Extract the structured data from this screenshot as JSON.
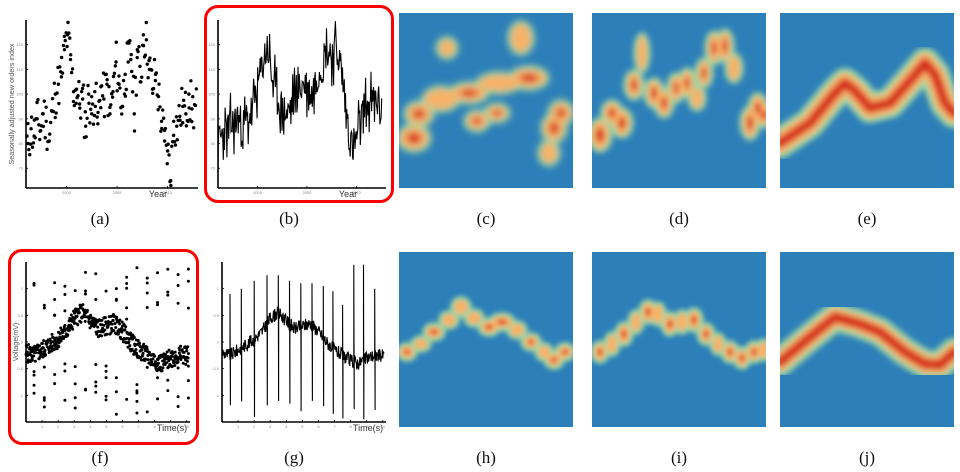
{
  "figure": {
    "captions": [
      "(a)",
      "(b)",
      "(c)",
      "(d)",
      "(e)",
      "(f)",
      "(g)",
      "(h)",
      "(i)",
      "(j)"
    ],
    "highlighted_panels": [
      "(b)",
      "(f)"
    ],
    "highlight_color": "#ff0000",
    "heatmap_colors": {
      "background": "#2c7fb8",
      "low": "#9fd8a4",
      "mid": "#f7b267",
      "high": "#d7301f"
    }
  },
  "panels": {
    "a": {
      "ylabel": "Seasonally adjusted new orders index",
      "xlabel": "Year",
      "yticks": [
        "70",
        "80",
        "90",
        "100",
        "110",
        "120"
      ],
      "xticks": [
        "2000",
        "2005",
        "2010"
      ]
    },
    "b": {
      "xlabel": "Year",
      "yticks": [
        "70",
        "80",
        "90",
        "100",
        "110",
        "120"
      ],
      "xticks": [
        "2000",
        "2005",
        "2010"
      ]
    },
    "f": {
      "ylabel": "Voltage(mV)",
      "xlabel": "Time(s)",
      "yticks": [
        "1",
        "0.5",
        "0",
        "-0.5",
        "-1"
      ],
      "xticks": [
        "1",
        "2",
        "3",
        "4",
        "5",
        "6",
        "7",
        "8",
        "9",
        "10"
      ]
    },
    "g": {
      "xlabel": "Time(s)",
      "yticks": [
        "1",
        "0.5",
        "0",
        "-0.5",
        "-1"
      ],
      "xticks": [
        "1",
        "2",
        "3",
        "4",
        "5",
        "6",
        "7",
        "8",
        "9",
        "10"
      ]
    }
  },
  "chart_data": [
    {
      "id": "a",
      "type": "scatter",
      "title": "",
      "xlabel": "Year",
      "ylabel": "Seasonally adjusted new orders index",
      "xlim": [
        1996,
        2013
      ],
      "ylim": [
        62,
        130
      ],
      "grid": false,
      "x": [
        1996.2,
        1996.5,
        1996.8,
        1997.1,
        1997.4,
        1997.7,
        1998.0,
        1998.3,
        1998.6,
        1998.9,
        1999.2,
        1999.5,
        1999.8,
        2000.1,
        2000.4,
        2000.7,
        2001.0,
        2001.3,
        2001.6,
        2001.9,
        2002.2,
        2002.5,
        2002.8,
        2003.1,
        2003.4,
        2003.7,
        2004.0,
        2004.3,
        2004.6,
        2004.9,
        2005.2,
        2005.5,
        2005.8,
        2006.1,
        2006.4,
        2006.7,
        2007.0,
        2007.3,
        2007.6,
        2007.9,
        2008.2,
        2008.5,
        2008.8,
        2009.1,
        2009.4,
        2009.7,
        2010.0,
        2010.3,
        2010.6,
        2010.9,
        2011.2,
        2011.5,
        2011.8,
        2012.1,
        2012.4
      ],
      "values": [
        80,
        86,
        83,
        90,
        85,
        92,
        89,
        81,
        93,
        100,
        104,
        107,
        118,
        124,
        114,
        101,
        102,
        96,
        98,
        87,
        100,
        92,
        101,
        88,
        103,
        98,
        104,
        92,
        101,
        113,
        104,
        95,
        108,
        113,
        116,
        92,
        118,
        105,
        124,
        122,
        110,
        102,
        108,
        99,
        89,
        81,
        77,
        65,
        89,
        87,
        91,
        95,
        92,
        100,
        94
      ]
    },
    {
      "id": "b",
      "type": "line",
      "title": "",
      "xlabel": "Year",
      "ylabel": "",
      "xlim": [
        1996,
        2013
      ],
      "ylim": [
        62,
        130
      ],
      "grid": false,
      "x": [
        1996.0,
        1996.5,
        1997.0,
        1997.5,
        1998.0,
        1998.5,
        1999.0,
        1999.5,
        2000.0,
        2000.5,
        2001.0,
        2001.5,
        2002.0,
        2002.5,
        2003.0,
        2003.5,
        2004.0,
        2004.5,
        2005.0,
        2005.5,
        2006.0,
        2006.5,
        2007.0,
        2007.5,
        2008.0,
        2008.5,
        2009.0,
        2009.5,
        2010.0,
        2010.5,
        2011.0,
        2011.5,
        2012.0,
        2012.5
      ],
      "values": [
        80,
        84,
        86,
        88,
        90,
        87,
        89,
        94,
        103,
        112,
        120,
        106,
        98,
        94,
        92,
        96,
        100,
        104,
        103,
        100,
        108,
        112,
        118,
        116,
        120,
        108,
        92,
        78,
        82,
        90,
        94,
        96,
        98,
        94
      ]
    },
    {
      "id": "c",
      "type": "heatmap",
      "title": "",
      "description": "Noisy density map of series (a); fragmented hot spots along the upper-middle band",
      "colorscale": [
        "#2c7fb8",
        "#9fd8a4",
        "#f7b267",
        "#d7301f"
      ]
    },
    {
      "id": "d",
      "type": "heatmap",
      "title": "",
      "description": "Density map following series (b) with blob-like segments",
      "colorscale": [
        "#2c7fb8",
        "#9fd8a4",
        "#f7b267",
        "#d7301f"
      ]
    },
    {
      "id": "e",
      "type": "heatmap",
      "title": "",
      "description": "Smooth density ridge with two peaks (~30% and ~70% across)",
      "colorscale": [
        "#2c7fb8",
        "#9fd8a4",
        "#f7b267",
        "#d7301f"
      ]
    },
    {
      "id": "f",
      "type": "scatter",
      "title": "",
      "xlabel": "Time(s)",
      "ylabel": "Voltage(mV)",
      "xlim": [
        0,
        10.2
      ],
      "ylim": [
        -1.5,
        1.5
      ],
      "grid": false,
      "x": [
        0.0,
        0.5,
        1.0,
        1.5,
        2.0,
        2.5,
        3.0,
        3.5,
        4.0,
        4.5,
        5.0,
        5.5,
        6.0,
        6.5,
        7.0,
        7.5,
        8.0,
        8.5,
        9.0,
        9.5,
        10.0
      ],
      "values": [
        -0.2,
        -0.25,
        -0.15,
        -0.05,
        0.05,
        0.2,
        0.45,
        0.55,
        0.4,
        0.25,
        0.3,
        0.35,
        0.2,
        0.0,
        -0.15,
        -0.25,
        -0.35,
        -0.4,
        -0.3,
        -0.25,
        -0.25
      ]
    },
    {
      "id": "g",
      "type": "line",
      "title": "",
      "xlabel": "Time(s)",
      "ylabel": "",
      "xlim": [
        0,
        10.2
      ],
      "ylim": [
        -1.5,
        1.5
      ],
      "grid": false,
      "x": [
        0.0,
        0.5,
        1.0,
        1.5,
        2.0,
        2.5,
        3.0,
        3.5,
        4.0,
        4.5,
        5.0,
        5.5,
        6.0,
        6.5,
        7.0,
        7.5,
        8.0,
        8.5,
        9.0,
        9.5,
        10.0
      ],
      "values": [
        -0.2,
        -0.25,
        -0.15,
        -0.05,
        0.05,
        0.2,
        0.45,
        0.55,
        0.4,
        0.25,
        0.3,
        0.35,
        0.2,
        0.0,
        -0.15,
        -0.25,
        -0.35,
        -0.4,
        -0.3,
        -0.25,
        -0.25
      ]
    },
    {
      "id": "h",
      "type": "heatmap",
      "title": "",
      "description": "Sparse density of series (f): hot blobs tracing the waveform",
      "colorscale": [
        "#2c7fb8",
        "#9fd8a4",
        "#f7b267",
        "#d7301f"
      ]
    },
    {
      "id": "i",
      "type": "heatmap",
      "title": "",
      "description": "Density of series (g) with periodic hot blobs and faint vertical streaks",
      "colorscale": [
        "#2c7fb8",
        "#9fd8a4",
        "#f7b267",
        "#d7301f"
      ]
    },
    {
      "id": "j",
      "type": "heatmap",
      "title": "",
      "description": "Smooth density ridge: rises to peak ~30%, gentle descent, trough ~85%",
      "colorscale": [
        "#2c7fb8",
        "#9fd8a4",
        "#f7b267",
        "#d7301f"
      ]
    }
  ]
}
